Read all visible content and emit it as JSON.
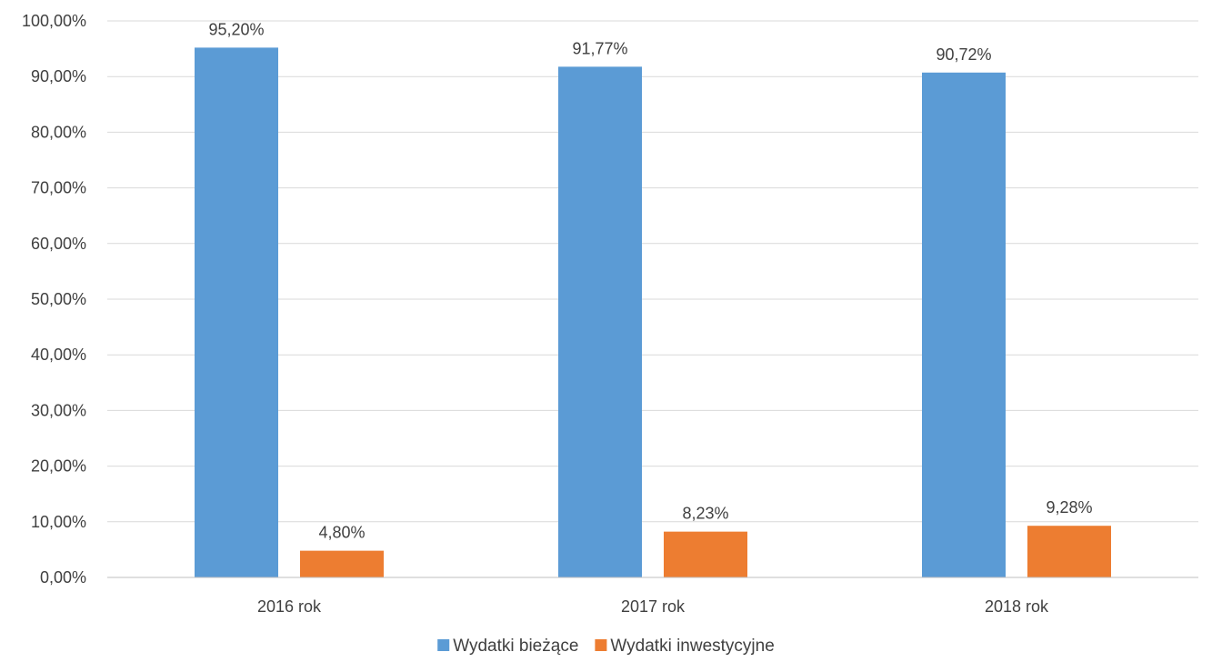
{
  "chart_data": {
    "type": "bar",
    "title": "",
    "xlabel": "",
    "ylabel": "",
    "categories": [
      "2016 rok",
      "2017 rok",
      "2018 rok"
    ],
    "series": [
      {
        "name": "Wydatki bieżące",
        "values": [
          95.2,
          91.77,
          90.72
        ],
        "labels": [
          "95,20%",
          "91,77%",
          "90,72%"
        ],
        "color": "#5b9bd5"
      },
      {
        "name": "Wydatki inwestycyjne",
        "values": [
          4.8,
          8.23,
          9.28
        ],
        "labels": [
          "4,80%",
          "8,23%",
          "9,28%"
        ],
        "color": "#ed7d31"
      }
    ],
    "ylim": [
      0,
      100
    ],
    "yticks": [
      0,
      10,
      20,
      30,
      40,
      50,
      60,
      70,
      80,
      90,
      100
    ],
    "ytick_labels": [
      "0,00%",
      "10,00%",
      "20,00%",
      "30,00%",
      "40,00%",
      "50,00%",
      "60,00%",
      "70,00%",
      "80,00%",
      "90,00%",
      "100,00%"
    ],
    "grid": true,
    "legend_position": "bottom"
  }
}
